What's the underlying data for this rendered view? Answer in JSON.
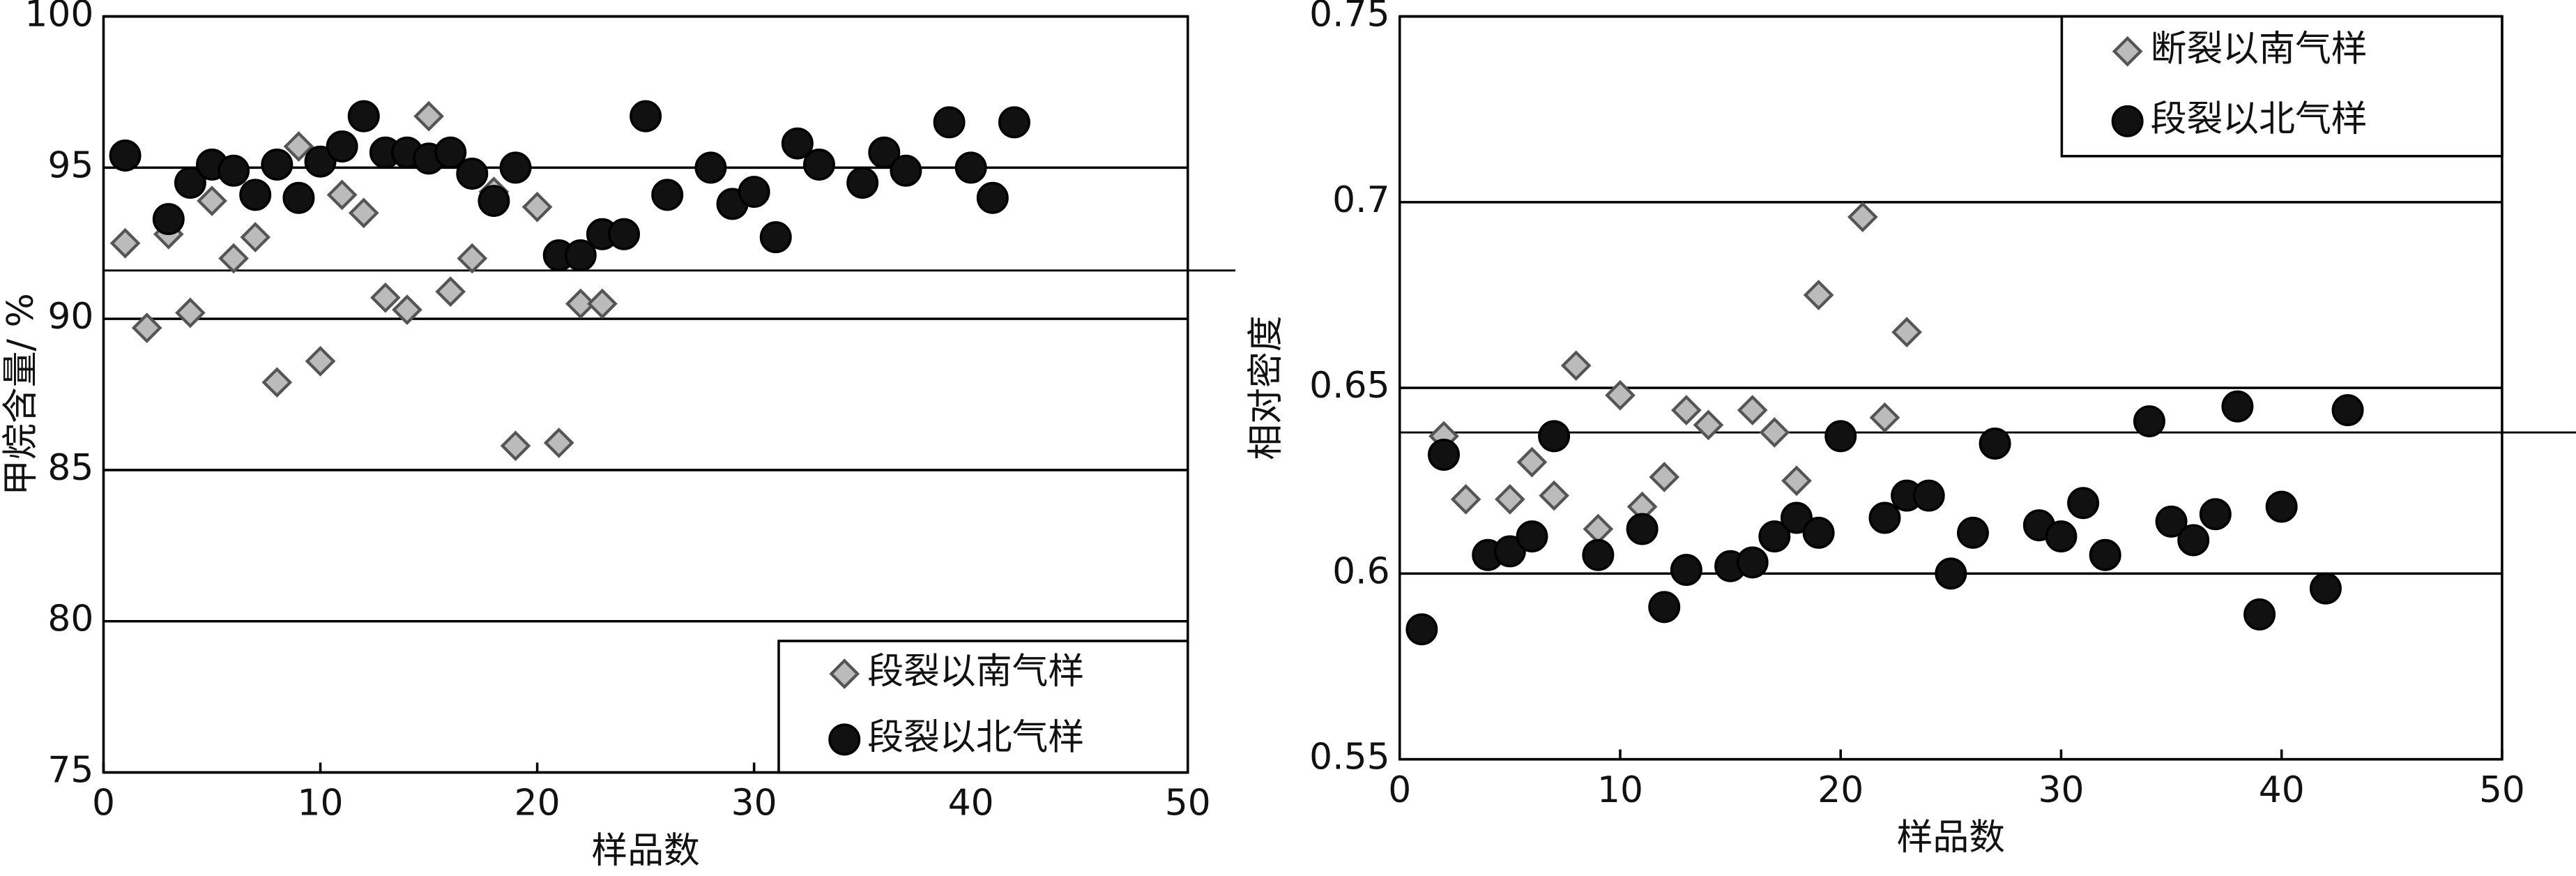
{
  "chart_data": [
    {
      "type": "scatter",
      "y_label": "甲烷含量/ %",
      "x_label": "样品数",
      "xlim": [
        0,
        50
      ],
      "xticks": [
        0,
        10,
        20,
        30,
        40,
        50
      ],
      "ylim": [
        75,
        100
      ],
      "yticks": [
        75,
        80,
        85,
        90,
        95,
        100
      ],
      "grid": true,
      "legend": "lower right",
      "reference_line": 91.6,
      "series": [
        {
          "name": "段裂以南气样",
          "marker": "diamond",
          "color": "#bbbbbb",
          "x": [
            1,
            2,
            3,
            4,
            5,
            6,
            7,
            8,
            9,
            10,
            11,
            12,
            13,
            14,
            15,
            16,
            17,
            18,
            19,
            20,
            21,
            22,
            23
          ],
          "values": [
            92.5,
            89.7,
            92.8,
            90.2,
            93.9,
            92.0,
            92.7,
            87.9,
            95.7,
            88.6,
            94.1,
            93.5,
            90.7,
            90.3,
            96.7,
            90.9,
            92.0,
            94.2,
            85.8,
            93.7,
            85.9,
            90.5,
            90.5
          ]
        },
        {
          "name": "段裂以北气样",
          "marker": "circle",
          "color": "#111111",
          "x": [
            1,
            3,
            4,
            5,
            6,
            7,
            8,
            9,
            10,
            11,
            12,
            13,
            14,
            15,
            16,
            17,
            18,
            19,
            21,
            22,
            23,
            24,
            25,
            26,
            28,
            29,
            30,
            31,
            32,
            33,
            35,
            36,
            37,
            39,
            40,
            41,
            42
          ],
          "values": [
            95.4,
            93.3,
            94.5,
            95.1,
            94.9,
            94.1,
            95.1,
            94.0,
            95.2,
            95.7,
            96.7,
            95.5,
            95.5,
            95.3,
            95.5,
            94.8,
            93.9,
            95.0,
            92.1,
            92.1,
            92.8,
            92.8,
            96.7,
            94.1,
            95.0,
            93.8,
            94.2,
            92.7,
            95.8,
            95.1,
            94.5,
            95.5,
            94.9,
            96.5,
            95.0,
            94.0,
            96.5
          ]
        }
      ]
    },
    {
      "type": "scatter",
      "y_label": "相对密度",
      "x_label": "样品数",
      "xlim": [
        0,
        50
      ],
      "xticks": [
        0,
        10,
        20,
        30,
        40,
        50
      ],
      "ylim": [
        0.55,
        0.75
      ],
      "yticks": [
        0.55,
        0.6,
        0.65,
        0.7,
        0.75
      ],
      "grid": true,
      "legend": "upper right",
      "reference_line": 0.638,
      "series": [
        {
          "name": "断裂以南气样",
          "marker": "diamond",
          "color": "#bbbbbb",
          "x": [
            2,
            3,
            5,
            6,
            7,
            8,
            9,
            10,
            11,
            12,
            13,
            14,
            16,
            17,
            18,
            19,
            21,
            22,
            23
          ],
          "values": [
            0.637,
            0.62,
            0.62,
            0.63,
            0.621,
            0.656,
            0.612,
            0.648,
            0.618,
            0.626,
            0.644,
            0.64,
            0.644,
            0.638,
            0.625,
            0.675,
            0.696,
            0.642,
            0.665
          ]
        },
        {
          "name": "段裂以北气样",
          "marker": "circle",
          "color": "#111111",
          "x": [
            1,
            2,
            4,
            5,
            6,
            7,
            9,
            11,
            12,
            13,
            15,
            16,
            17,
            18,
            19,
            20,
            22,
            23,
            24,
            25,
            26,
            27,
            29,
            30,
            31,
            32,
            34,
            35,
            36,
            37,
            38,
            39,
            40,
            42,
            43
          ],
          "values": [
            0.585,
            0.632,
            0.605,
            0.606,
            0.61,
            0.637,
            0.605,
            0.612,
            0.591,
            0.601,
            0.602,
            0.603,
            0.61,
            0.615,
            0.611,
            0.637,
            0.615,
            0.621,
            0.621,
            0.6,
            0.611,
            0.635,
            0.613,
            0.61,
            0.619,
            0.605,
            0.641,
            0.614,
            0.609,
            0.616,
            0.645,
            0.589,
            0.618,
            0.596,
            0.644
          ]
        }
      ]
    }
  ]
}
